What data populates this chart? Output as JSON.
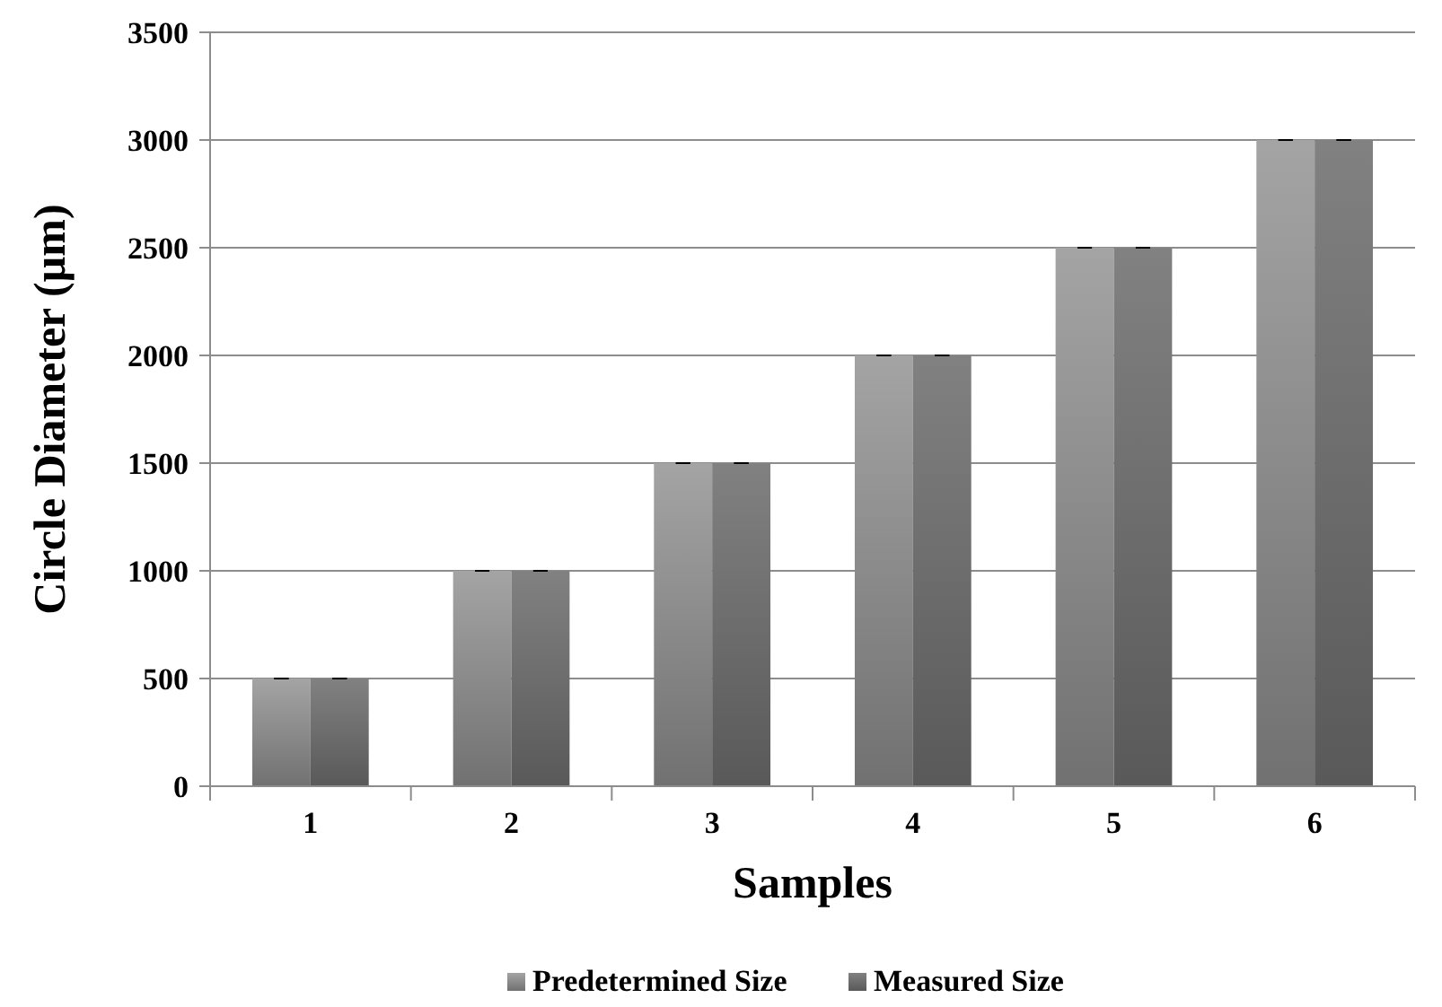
{
  "chart_data": {
    "type": "bar",
    "xlabel": "Samples",
    "ylabel": "Circle Diameter (µm)",
    "categories": [
      "1",
      "2",
      "3",
      "4",
      "5",
      "6"
    ],
    "series": [
      {
        "name": "Predetermined Size",
        "color": "#8c8c8c",
        "values": [
          500,
          1000,
          1500,
          2000,
          2500,
          3000
        ],
        "errors": [
          0,
          0,
          0,
          0,
          0,
          0
        ]
      },
      {
        "name": "Measured Size",
        "color": "#6e6e6e",
        "values": [
          500,
          1000,
          1500,
          2000,
          2500,
          3000
        ],
        "errors": [
          0,
          0,
          0,
          0,
          0,
          0
        ]
      }
    ],
    "ylim": [
      0,
      3500
    ],
    "yticks": [
      0,
      500,
      1000,
      1500,
      2000,
      2500,
      3000,
      3500
    ],
    "grid": "y",
    "legend": "bottom"
  }
}
